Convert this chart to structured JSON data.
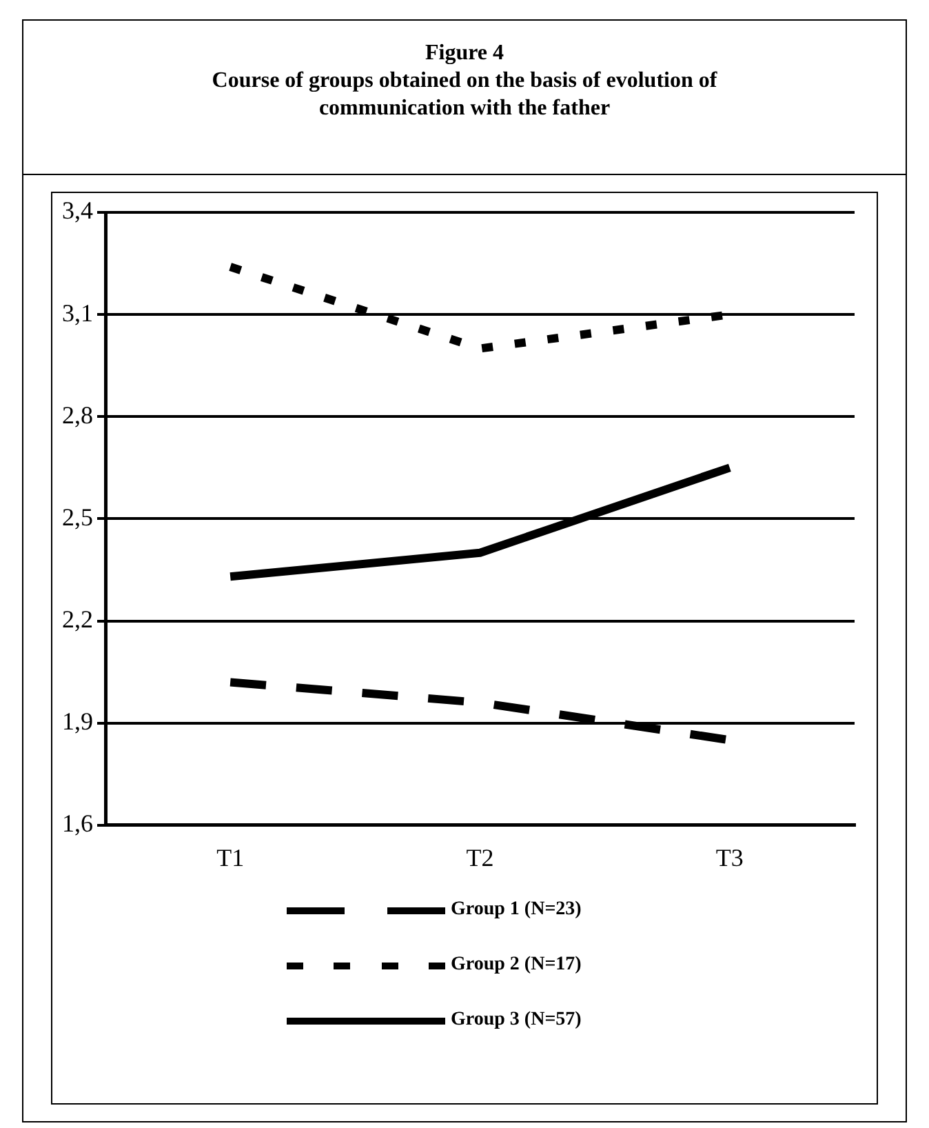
{
  "chart_data": {
    "type": "line",
    "title": "Figure 4",
    "subtitle": "Course of groups obtained on the basis of evolution of communication with the father",
    "categories": [
      "T1",
      "T2",
      "T3"
    ],
    "series": [
      {
        "name": "Group 1 (N=23)",
        "color": "#000000",
        "line_style": "dashed",
        "values": [
          2.02,
          1.96,
          1.85
        ]
      },
      {
        "name": "Group 2 (N=17)",
        "color": "#000000",
        "line_style": "dotted",
        "values": [
          3.24,
          3.0,
          3.1
        ]
      },
      {
        "name": "Group 3 (N=57)",
        "color": "#000000",
        "line_style": "solid",
        "values": [
          2.33,
          2.4,
          2.65
        ]
      }
    ],
    "ylim": [
      1.6,
      3.4
    ],
    "yticks": [
      {
        "value": 1.6,
        "label": "1,6"
      },
      {
        "value": 1.9,
        "label": "1,9"
      },
      {
        "value": 2.2,
        "label": "2,2"
      },
      {
        "value": 2.5,
        "label": "2,5"
      },
      {
        "value": 2.8,
        "label": "2,8"
      },
      {
        "value": 3.1,
        "label": "3,1"
      },
      {
        "value": 3.4,
        "label": "3,4"
      }
    ],
    "grid": "y",
    "legend": "bottom",
    "marker": "none"
  }
}
